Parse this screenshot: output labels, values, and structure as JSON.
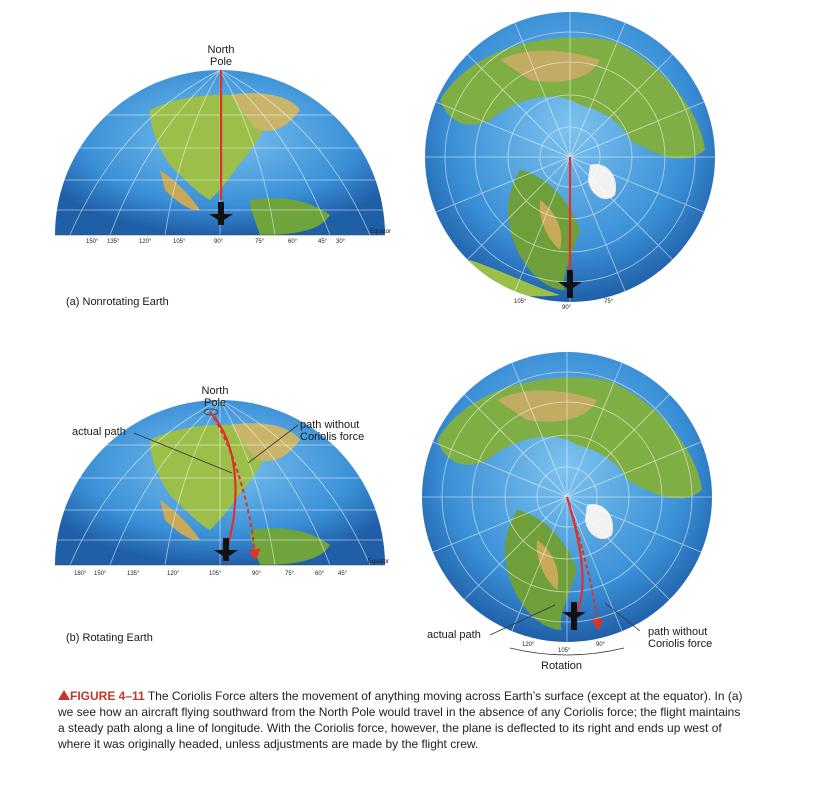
{
  "panel_a": {
    "north_pole": [
      "North",
      "Pole"
    ],
    "equator_label": "Equator",
    "ticks": [
      "150°",
      "135°",
      "120°",
      "105°",
      "90°",
      "75°",
      "60°",
      "45°",
      "30°"
    ],
    "label": "(a) Nonrotating Earth",
    "polar_ticks": [
      "105°",
      "90°",
      "75°"
    ]
  },
  "panel_b": {
    "north_pole": [
      "North",
      "Pole"
    ],
    "actual_path": "actual path",
    "path_without": [
      "path without",
      "Coriolis force"
    ],
    "equator_label": "Equator",
    "ticks": [
      "180°",
      "150°",
      "135°",
      "120°",
      "105°",
      "90°",
      "75°",
      "60°",
      "45°"
    ],
    "label": "(b) Rotating Earth",
    "polar_actual_path": "actual path",
    "polar_path_without": [
      "path without",
      "Coriolis force"
    ],
    "polar_ticks": [
      "120°",
      "105°",
      "90°"
    ],
    "rotation": "Rotation"
  },
  "caption": {
    "figure": "FIGURE 4–11",
    "text": "The Coriolis Force alters the movement of anything moving across Earth’s surface (except at the equator). In (a) we see how an aircraft flying southward from the North Pole would travel in the absence of any Coriolis force; the flight maintains a steady path along a line of longitude. With the Coriolis force, however, the plane is deflected to its right and ends up west of where it was originally headed, unless adjustments are made by the flight crew."
  },
  "colors": {
    "ocean": "#3a8fd6",
    "land": "#8ab84a",
    "path": "#e0302a"
  }
}
